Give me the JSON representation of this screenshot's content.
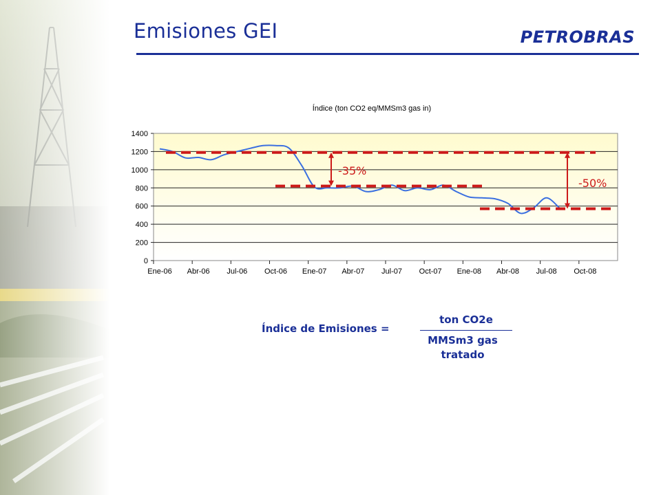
{
  "slide": {
    "title": "Emisiones GEI",
    "logo_text": "PETROBRAS",
    "colors": {
      "brand": "#1a2f97",
      "accent": "#cc1a1a",
      "line": "#3a6fe0",
      "plot_bg": "#fffbcf"
    }
  },
  "chart_data": {
    "type": "line",
    "title": "Índice (ton CO2 eq/MMSm3 gas in)",
    "xlabel": "",
    "ylabel": "",
    "ylim": [
      0,
      1400
    ],
    "yticks": [
      0,
      200,
      400,
      600,
      800,
      1000,
      1200,
      1400
    ],
    "xticks": [
      "Ene-06",
      "Abr-06",
      "Jul-06",
      "Oct-06",
      "Ene-07",
      "Abr-07",
      "Jul-07",
      "Oct-07",
      "Ene-08",
      "Abr-08",
      "Jul-08",
      "Oct-08"
    ],
    "grid": true,
    "legend": "none",
    "series": [
      {
        "x": [
          "Ene-06",
          "Feb-06",
          "Mar-06",
          "Abr-06",
          "May-06",
          "Jun-06",
          "Jul-06",
          "Ago-06",
          "Sep-06",
          "Oct-06",
          "Nov-06",
          "Dic-06",
          "Ene-07",
          "Feb-07",
          "Mar-07",
          "Abr-07",
          "May-07",
          "Jun-07",
          "Jul-07",
          "Ago-07",
          "Sep-07",
          "Oct-07",
          "Nov-07",
          "Dic-07",
          "Ene-08",
          "Feb-08",
          "Mar-08",
          "Abr-08",
          "May-08",
          "Jun-08",
          "Jul-08",
          "Ago-08"
        ],
        "values": [
          1230,
          1200,
          1130,
          1135,
          1110,
          1165,
          1200,
          1235,
          1265,
          1265,
          1240,
          1050,
          810,
          800,
          800,
          820,
          760,
          780,
          830,
          770,
          800,
          780,
          830,
          760,
          700,
          690,
          680,
          630,
          520,
          580,
          690,
          580
        ]
      }
    ],
    "annotations": [
      {
        "label": "-35%",
        "from": 1190,
        "to": 820
      },
      {
        "label": "-50%",
        "from": 1190,
        "to": 570
      }
    ]
  },
  "formula": {
    "label": "Índice de Emisiones =",
    "numerator": "ton CO2e",
    "denominator_line1": "MMSm3 gas",
    "denominator_line2": "tratado"
  }
}
